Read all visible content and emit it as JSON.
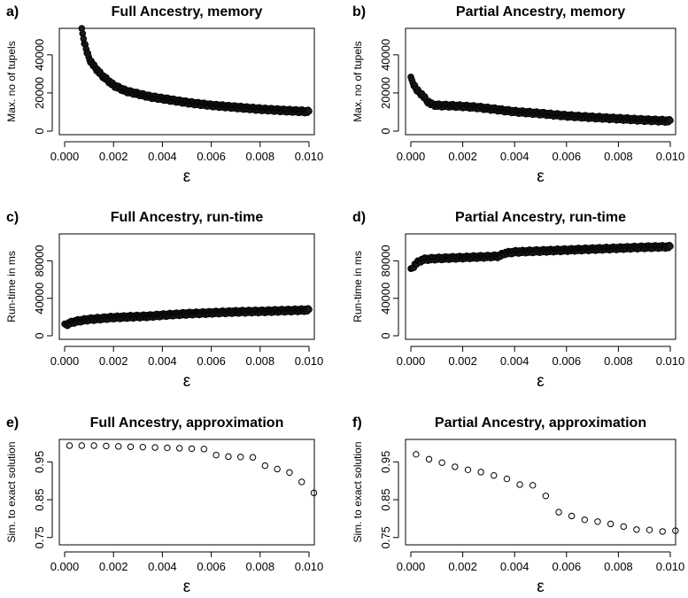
{
  "chart_data": [
    {
      "panel": "a)",
      "type": "scatter",
      "title": "Full Ancestry, memory",
      "xlabel": "ε",
      "ylabel": "Max. no of tupels",
      "xlim": [
        0,
        0.01
      ],
      "ylim": [
        0,
        52000
      ],
      "xticks": [
        "0.000",
        "0.002",
        "0.004",
        "0.006",
        "0.008",
        "0.010"
      ],
      "yticks": [
        "0",
        "20000",
        "40000"
      ],
      "marker": "dense-circles",
      "series": [
        {
          "x": [
            0.0007,
            0.0008,
            0.0009,
            0.001,
            0.0012,
            0.0015,
            0.002,
            0.0025,
            0.003,
            0.0035,
            0.004,
            0.005,
            0.006,
            0.007,
            0.008,
            0.009,
            0.01
          ],
          "y": [
            53000,
            47000,
            42000,
            38000,
            34000,
            29500,
            24000,
            21000,
            19500,
            18000,
            17000,
            15000,
            13500,
            12500,
            11500,
            10800,
            10200
          ]
        }
      ]
    },
    {
      "panel": "b)",
      "type": "scatter",
      "title": "Partial Ancestry, memory",
      "xlabel": "ε",
      "ylabel": "Max. no of tupels",
      "xlim": [
        0,
        0.01
      ],
      "ylim": [
        0,
        52000
      ],
      "xticks": [
        "0.000",
        "0.002",
        "0.004",
        "0.006",
        "0.008",
        "0.010"
      ],
      "yticks": [
        "0",
        "20000",
        "40000"
      ],
      "marker": "dense-circles",
      "series": [
        {
          "x": [
            0.0,
            0.0001,
            0.0002,
            0.0003,
            0.0004,
            0.0005,
            0.0006,
            0.0008,
            0.001,
            0.0015,
            0.002,
            0.0025,
            0.003,
            0.0035,
            0.004,
            0.005,
            0.006,
            0.007,
            0.008,
            0.009,
            0.01
          ],
          "y": [
            27500,
            25000,
            22000,
            20500,
            19500,
            18000,
            16000,
            14000,
            13500,
            13300,
            13000,
            12500,
            11800,
            11000,
            10200,
            9200,
            8000,
            7200,
            6500,
            5800,
            5300
          ]
        }
      ]
    },
    {
      "panel": "c)",
      "type": "scatter",
      "title": "Full Ancestry, run-time",
      "xlabel": "ε",
      "ylabel": "Run-time in ms",
      "xlim": [
        0,
        0.01
      ],
      "ylim": [
        0,
        105000
      ],
      "xticks": [
        "0.000",
        "0.002",
        "0.004",
        "0.006",
        "0.008",
        "0.010"
      ],
      "yticks": [
        "0",
        "40000",
        "80000"
      ],
      "marker": "dense-circles",
      "series": [
        {
          "x": [
            0.0,
            0.0002,
            0.0004,
            0.0006,
            0.001,
            0.0015,
            0.002,
            0.0025,
            0.003,
            0.0035,
            0.004,
            0.005,
            0.006,
            0.007,
            0.008,
            0.009,
            0.01
          ],
          "y": [
            11000,
            13500,
            15000,
            16000,
            17500,
            18500,
            19500,
            20000,
            20500,
            21000,
            22000,
            23500,
            24500,
            25500,
            26000,
            26800,
            27500
          ]
        }
      ]
    },
    {
      "panel": "d)",
      "type": "scatter",
      "title": "Partial Ancestry, run-time",
      "xlabel": "ε",
      "ylabel": "Run-time in ms",
      "xlim": [
        0,
        0.01
      ],
      "ylim": [
        0,
        105000
      ],
      "xticks": [
        "0.000",
        "0.002",
        "0.004",
        "0.006",
        "0.008",
        "0.010"
      ],
      "yticks": [
        "0",
        "40000",
        "80000"
      ],
      "marker": "dense-circles",
      "series": [
        {
          "x": [
            0.0,
            0.0001,
            0.0002,
            0.0003,
            0.0004,
            0.0005,
            0.0007,
            0.001,
            0.0015,
            0.002,
            0.0025,
            0.003,
            0.0034,
            0.0036,
            0.004,
            0.005,
            0.006,
            0.007,
            0.008,
            0.009,
            0.01
          ],
          "y": [
            70000,
            74000,
            77000,
            79000,
            80500,
            81500,
            82000,
            82500,
            83000,
            83500,
            84000,
            84500,
            85000,
            88000,
            89500,
            90500,
            91500,
            92500,
            93500,
            94500,
            95000
          ]
        }
      ]
    },
    {
      "panel": "e)",
      "type": "scatter",
      "title": "Full Ancestry, approximation",
      "xlabel": "ε",
      "ylabel": "Sim. to exact solution",
      "xlim": [
        0,
        0.01
      ],
      "ylim": [
        0.74,
        1.0
      ],
      "xticks": [
        "0.000",
        "0.002",
        "0.004",
        "0.006",
        "0.008",
        "0.010"
      ],
      "yticks": [
        "0.75",
        "0.85",
        "0.95"
      ],
      "marker": "open-circle",
      "series": [
        {
          "x": [
            0.0002,
            0.0007,
            0.0012,
            0.0017,
            0.0022,
            0.0027,
            0.0032,
            0.0037,
            0.0042,
            0.0047,
            0.0052,
            0.0057,
            0.0062,
            0.0067,
            0.0072,
            0.0077,
            0.0082,
            0.0087,
            0.0092,
            0.0097,
            0.0102
          ],
          "y": [
            0.993,
            0.993,
            0.993,
            0.992,
            0.991,
            0.99,
            0.989,
            0.988,
            0.987,
            0.986,
            0.985,
            0.984,
            0.968,
            0.964,
            0.963,
            0.962,
            0.94,
            0.931,
            0.922,
            0.897,
            0.868
          ]
        }
      ]
    },
    {
      "panel": "f)",
      "type": "scatter",
      "title": "Partial Ancestry, approximation",
      "xlabel": "ε",
      "ylabel": "Sim. to exact solution",
      "xlim": [
        0,
        0.01
      ],
      "ylim": [
        0.74,
        1.0
      ],
      "xticks": [
        "0.000",
        "0.002",
        "0.004",
        "0.006",
        "0.008",
        "0.010"
      ],
      "yticks": [
        "0.75",
        "0.85",
        "0.95"
      ],
      "marker": "open-circle",
      "series": [
        {
          "x": [
            0.0002,
            0.0007,
            0.0012,
            0.0017,
            0.0022,
            0.0027,
            0.0032,
            0.0037,
            0.0042,
            0.0047,
            0.0052,
            0.0057,
            0.0062,
            0.0067,
            0.0072,
            0.0077,
            0.0082,
            0.0087,
            0.0092,
            0.0097,
            0.0102
          ],
          "y": [
            0.97,
            0.957,
            0.948,
            0.937,
            0.929,
            0.923,
            0.914,
            0.905,
            0.89,
            0.888,
            0.86,
            0.817,
            0.807,
            0.797,
            0.792,
            0.786,
            0.779,
            0.771,
            0.77,
            0.766,
            0.768
          ]
        }
      ]
    }
  ]
}
